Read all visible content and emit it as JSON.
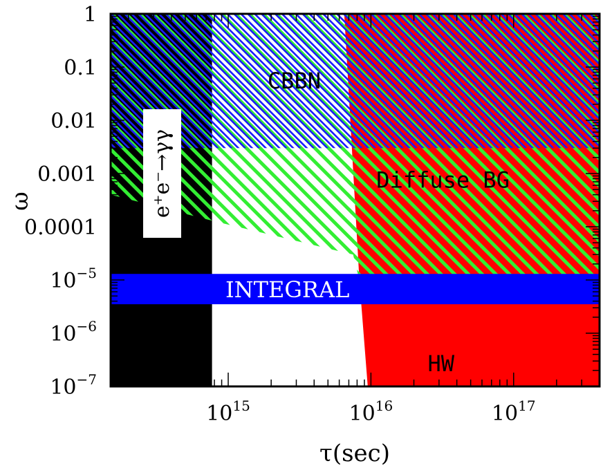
{
  "chart_data": {
    "type": "area",
    "xlabel": "τ(sec)",
    "ylabel": "ω",
    "xscale": "log",
    "yscale": "log",
    "xlim": [
      150000000000000.0,
      4e+17
    ],
    "ylim": [
      1e-07,
      1
    ],
    "x_tick_labels": [
      {
        "value": 1000000000000000.0,
        "mantissa": "10",
        "exponent": "15"
      },
      {
        "value": 1e+16,
        "mantissa": "10",
        "exponent": "16"
      },
      {
        "value": 1e+17,
        "mantissa": "10",
        "exponent": "17"
      }
    ],
    "y_tick_labels": [
      {
        "value": 1,
        "text": "1"
      },
      {
        "value": 0.1,
        "text": "0.1"
      },
      {
        "value": 0.01,
        "text": "0.01"
      },
      {
        "value": 0.001,
        "text": "0.001"
      },
      {
        "value": 0.0001,
        "text": "0.0001"
      },
      {
        "value": 1e-05,
        "mantissa": "10",
        "exponent": "−5"
      },
      {
        "value": 1e-06,
        "mantissa": "10",
        "exponent": "−6"
      },
      {
        "value": 1e-07,
        "mantissa": "10",
        "exponent": "−7"
      }
    ],
    "regions": [
      {
        "name": "ee-gg",
        "label": "e⁺e⁻→γγ",
        "color": "#000000",
        "points": [
          [
            150000000000000.0,
            1e-07
          ],
          [
            770000000000000.0,
            1e-07
          ],
          [
            770000000000000.0,
            1
          ],
          [
            150000000000000.0,
            1
          ]
        ]
      },
      {
        "name": "hw",
        "label": "HW",
        "color": "#ff0000",
        "points": [
          [
            9500000000000000.0,
            1e-07
          ],
          [
            4e+17,
            1e-07
          ],
          [
            4e+17,
            1
          ],
          [
            6500000000000000.0,
            1
          ],
          [
            8300000000000000.0,
            1e-05
          ]
        ]
      },
      {
        "name": "diffuse-bg",
        "label": "Diffuse BG",
        "color": "#33ee33",
        "points": [
          [
            6500000000000000.0,
            1
          ],
          [
            4e+17,
            1
          ],
          [
            4e+17,
            7e-06
          ],
          [
            8300000000000000.0,
            1e-05
          ],
          [
            7500000000000000.0,
            3e-05
          ],
          [
            6500000000000000.0,
            0.003
          ]
        ]
      },
      {
        "name": "cbbn",
        "label": "CBBN",
        "color": "#22ee22",
        "points": [
          [
            150000000000000.0,
            1
          ],
          [
            6500000000000000.0,
            1
          ],
          [
            7500000000000000.0,
            3e-05
          ],
          [
            770000000000000.0,
            0.00013
          ],
          [
            150000000000000.0,
            0.0004
          ]
        ]
      },
      {
        "name": "cbbn-blue",
        "label": "",
        "color": "#1a1aff",
        "points": [
          [
            150000000000000.0,
            1
          ],
          [
            4e+17,
            1
          ],
          [
            4e+17,
            0.003
          ],
          [
            150000000000000.0,
            0.003
          ]
        ]
      }
    ],
    "band": {
      "name": "integral",
      "label": "INTEGRAL",
      "color": "#0000ff",
      "ymin": 3.5e-06,
      "ymax": 1.3e-05
    },
    "annotations": [
      {
        "text": "CBBN",
        "x": 2900000000000000.0,
        "y": 0.055
      },
      {
        "text": "Diffuse BG",
        "x": 3.2e+16,
        "y": 0.00075
      },
      {
        "text": "HW",
        "x": 3.1e+16,
        "y": 2.7e-07
      },
      {
        "text": "INTEGRAL",
        "x": 2600000000000000.0,
        "y": 6.6e-06
      }
    ],
    "colors": {
      "black": "#000000",
      "red": "#ff0000",
      "green_hatch": "#33ee33",
      "blue_hatch": "#1a1aff",
      "blue_band": "#0000ff"
    }
  }
}
